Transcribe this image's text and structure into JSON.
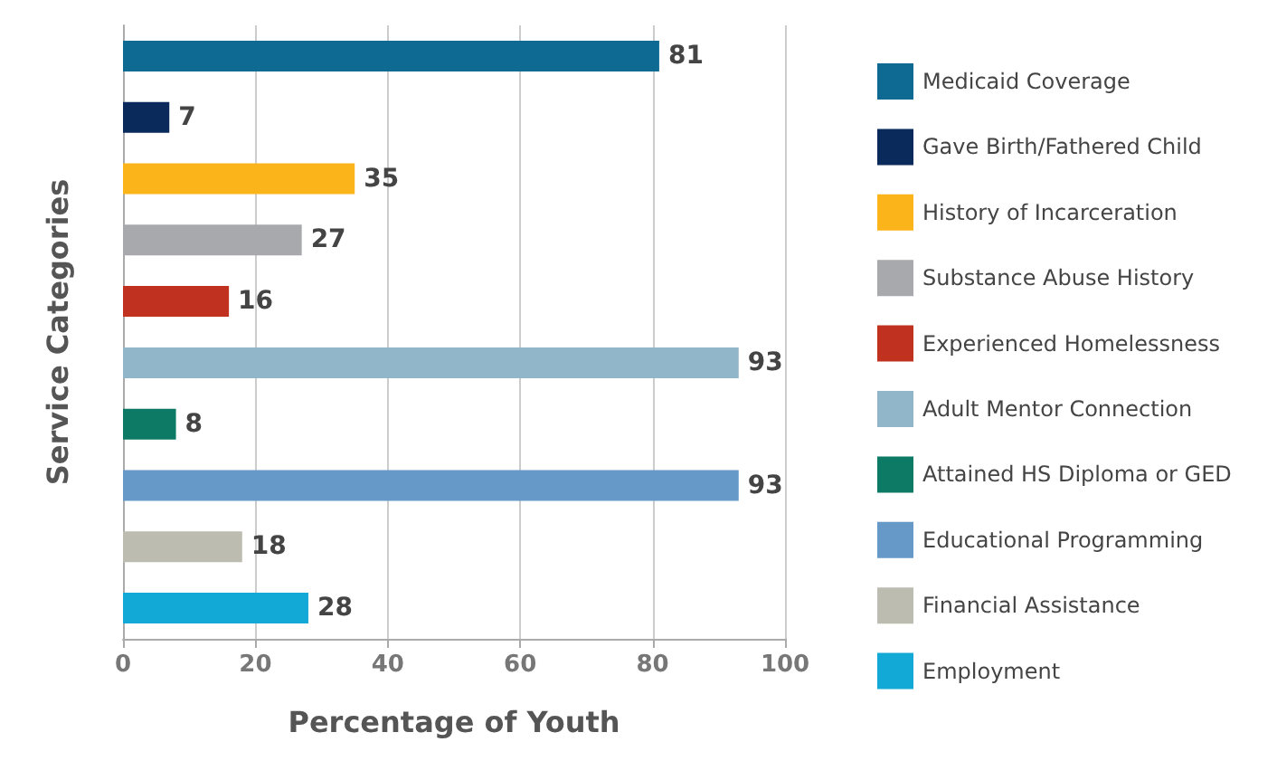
{
  "chart_data": {
    "type": "bar",
    "orientation": "horizontal",
    "xlabel": "Percentage of Youth",
    "ylabel": "Service Categories",
    "categories": [
      null,
      null,
      null,
      null,
      null,
      null,
      null,
      null,
      null,
      null
    ],
    "series": [
      {
        "name": "Medicaid Coverage",
        "color": "#0e6a93",
        "values": [
          81,
          null,
          null,
          null,
          null,
          null,
          null,
          null,
          null,
          null
        ]
      },
      {
        "name": "Gave Birth/Fathered Child",
        "color": "#0a2a5c",
        "values": [
          null,
          7,
          null,
          null,
          null,
          null,
          null,
          null,
          null,
          null
        ]
      },
      {
        "name": "History of Incarceration",
        "color": "#fbb41a",
        "values": [
          null,
          null,
          35,
          null,
          null,
          null,
          null,
          null,
          null,
          null
        ]
      },
      {
        "name": "Substance Abuse History",
        "color": "#a7a9ac",
        "values": [
          null,
          null,
          null,
          27,
          null,
          null,
          null,
          null,
          null,
          null
        ]
      },
      {
        "name": "Experienced Homelessness",
        "color": "#c0321f",
        "values": [
          null,
          null,
          null,
          null,
          16,
          null,
          null,
          null,
          null,
          null
        ]
      },
      {
        "name": "Adult Mentor Connection",
        "color": "#92b6c9",
        "values": [
          null,
          null,
          null,
          null,
          null,
          93,
          null,
          null,
          null,
          null
        ]
      },
      {
        "name": "Attained HS Diploma or GED",
        "color": "#0d7a66",
        "values": [
          null,
          null,
          null,
          null,
          null,
          null,
          8,
          null,
          null,
          null
        ]
      },
      {
        "name": "Educational Programming",
        "color": "#6699c8",
        "values": [
          null,
          null,
          null,
          null,
          null,
          null,
          null,
          93,
          null,
          null
        ]
      },
      {
        "name": "Financial Assistance",
        "color": "#bcbcb0",
        "values": [
          null,
          null,
          null,
          null,
          null,
          null,
          null,
          null,
          18,
          null
        ]
      },
      {
        "name": "Employment",
        "color": "#13a9d6",
        "values": [
          null,
          null,
          null,
          null,
          null,
          null,
          null,
          null,
          null,
          28
        ]
      }
    ],
    "xlim": [
      0,
      100
    ],
    "xticks": [
      0,
      20,
      40,
      60,
      80,
      100
    ],
    "grid": "x",
    "legend": "right",
    "data_labels": true
  }
}
